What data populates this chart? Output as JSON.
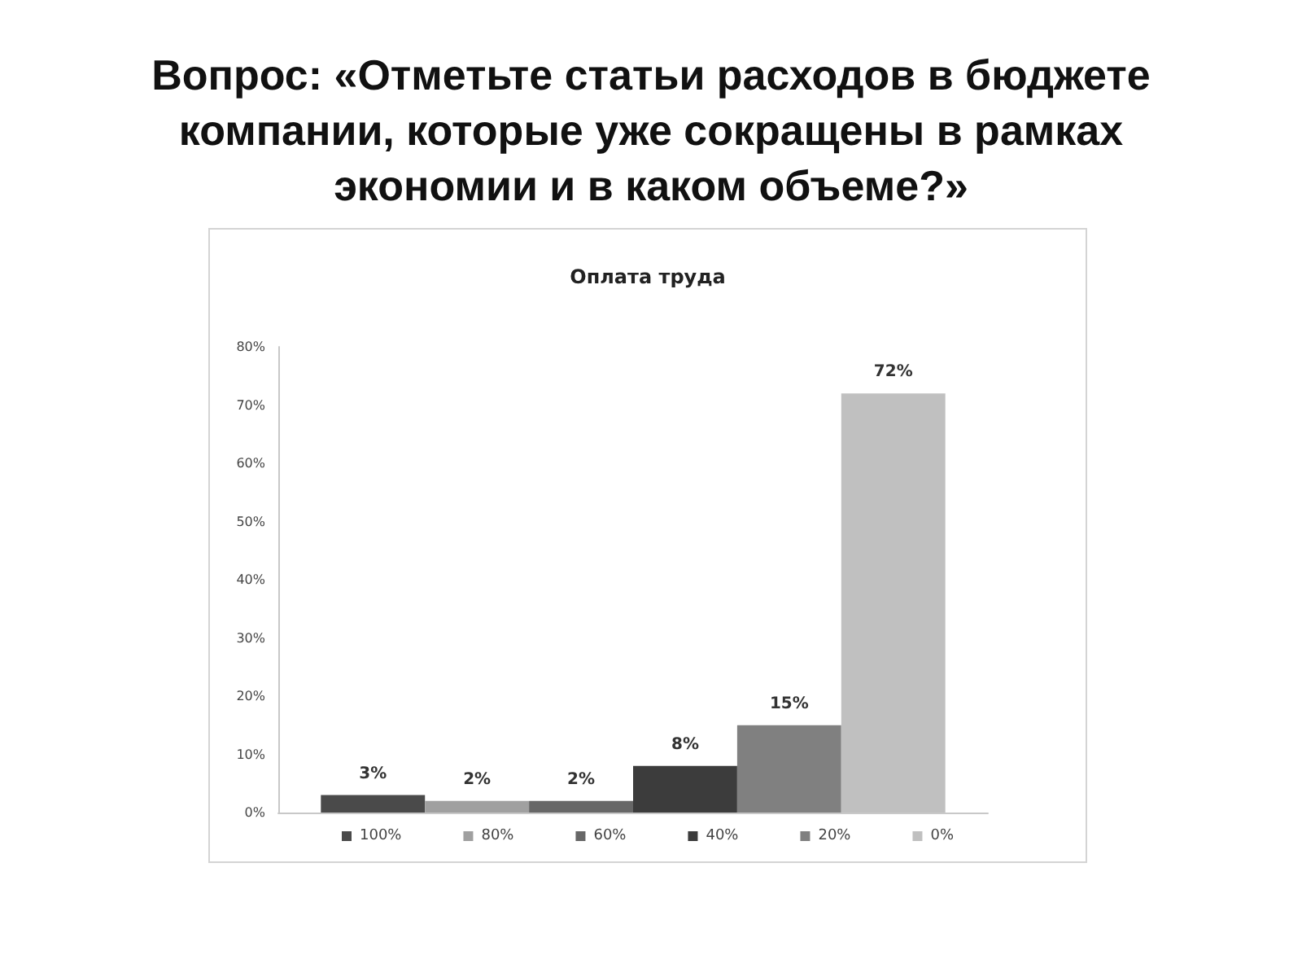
{
  "chart_data": {
    "type": "bar",
    "title": "Вопрос: «Отметьте статьи расходов в бюджете компании, которые уже сокращены в рамках экономии и в каком объеме?»",
    "subtitle": "Оплата труда",
    "categories": [
      null
    ],
    "series": [
      {
        "name": "100%",
        "color": "#4a4a4a",
        "values": [
          3
        ],
        "value_labels": [
          "3%"
        ]
      },
      {
        "name": "80%",
        "color": "#a0a0a0",
        "values": [
          2
        ],
        "value_labels": [
          "2%"
        ]
      },
      {
        "name": "60%",
        "color": "#676767",
        "values": [
          2
        ],
        "value_labels": [
          "2%"
        ]
      },
      {
        "name": "40%",
        "color": "#3c3c3c",
        "values": [
          8
        ],
        "value_labels": [
          "8%"
        ]
      },
      {
        "name": "20%",
        "color": "#808080",
        "values": [
          15
        ],
        "value_labels": [
          "15%"
        ]
      },
      {
        "name": "0%",
        "color": "#c0c0c0",
        "values": [
          72
        ],
        "value_labels": [
          "72%"
        ]
      }
    ],
    "ylim": [
      0,
      80
    ],
    "yticks": [
      {
        "value": 0,
        "label": "0%"
      },
      {
        "value": 10,
        "label": "10%"
      },
      {
        "value": 20,
        "label": "20%"
      },
      {
        "value": 30,
        "label": "30%"
      },
      {
        "value": 40,
        "label": "40%"
      },
      {
        "value": 50,
        "label": "50%"
      },
      {
        "value": 60,
        "label": "60%"
      },
      {
        "value": 70,
        "label": "70%"
      },
      {
        "value": 80,
        "label": "80%"
      }
    ],
    "legend": "bottom"
  }
}
